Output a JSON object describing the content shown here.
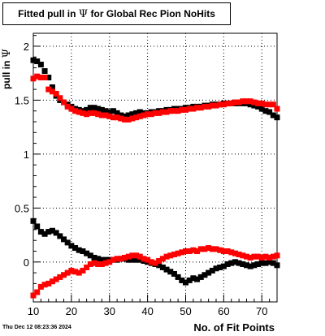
{
  "title": {
    "prefix": "Fitted pull in ",
    "symbol": "Ψ",
    "suffix": "for Global Rec Pion NoHits"
  },
  "timestamp": "Thu Dec 12 08:23:36 2024",
  "colors": {
    "series_black": "#000000",
    "series_red": "#ff0000",
    "grid": "#000000"
  },
  "chart_data": {
    "type": "scatter",
    "title": "Fitted pull in Ψ for Global Rec Pion NoHits",
    "xlabel": "No. of Fit Points",
    "ylabel_prefix": "pull in ",
    "ylabel_symbol": "Ψ",
    "xlim": [
      10,
      74
    ],
    "ylim": [
      -0.37,
      2.12
    ],
    "xticks": [
      10,
      20,
      30,
      40,
      50,
      60,
      70
    ],
    "yticks": [
      0,
      0.5,
      1,
      1.5,
      2
    ],
    "ytick_labels": [
      "0",
      "0.5",
      "1",
      "1.5",
      "2"
    ],
    "grid": true,
    "legend": "none",
    "series": [
      {
        "x": [
          10,
          11,
          12,
          13,
          14,
          15,
          16,
          17,
          18,
          19,
          20,
          21,
          22,
          23,
          24,
          25,
          26,
          27,
          28,
          29,
          30,
          31,
          32,
          33,
          34,
          35,
          36,
          37,
          38,
          39,
          40,
          41,
          42,
          43,
          44,
          45,
          46,
          47,
          48,
          49,
          50,
          51,
          52,
          53,
          54,
          55,
          56,
          57,
          58,
          59,
          60,
          61,
          62,
          63,
          64,
          65,
          66,
          67,
          68,
          69,
          70,
          71,
          72,
          73,
          74
        ],
        "y": [
          1.87,
          1.86,
          1.83,
          1.77,
          1.71,
          1.62,
          1.54,
          1.5,
          1.48,
          1.46,
          1.44,
          1.42,
          1.41,
          1.4,
          1.41,
          1.43,
          1.43,
          1.42,
          1.41,
          1.4,
          1.39,
          1.4,
          1.38,
          1.36,
          1.35,
          1.36,
          1.37,
          1.38,
          1.39,
          1.38,
          1.38,
          1.39,
          1.39,
          1.4,
          1.4,
          1.41,
          1.41,
          1.42,
          1.42,
          1.42,
          1.43,
          1.43,
          1.44,
          1.44,
          1.44,
          1.45,
          1.45,
          1.46,
          1.46,
          1.46,
          1.47,
          1.47,
          1.47,
          1.47,
          1.47,
          1.47,
          1.47,
          1.46,
          1.45,
          1.44,
          1.42,
          1.4,
          1.39,
          1.36,
          1.34
        ]
      },
      {
        "x": [
          10,
          11,
          12,
          13,
          14,
          15,
          16,
          17,
          18,
          19,
          20,
          21,
          22,
          23,
          24,
          25,
          26,
          27,
          28,
          29,
          30,
          31,
          32,
          33,
          34,
          35,
          36,
          37,
          38,
          39,
          40,
          41,
          42,
          43,
          44,
          45,
          46,
          47,
          48,
          49,
          50,
          51,
          52,
          53,
          54,
          55,
          56,
          57,
          58,
          59,
          60,
          61,
          62,
          63,
          64,
          65,
          66,
          67,
          68,
          69,
          70,
          71,
          72,
          73,
          74
        ],
        "y": [
          1.7,
          1.72,
          1.71,
          1.71,
          1.6,
          1.58,
          1.56,
          1.52,
          1.48,
          1.44,
          1.42,
          1.4,
          1.39,
          1.38,
          1.37,
          1.38,
          1.38,
          1.37,
          1.36,
          1.36,
          1.35,
          1.34,
          1.34,
          1.33,
          1.32,
          1.32,
          1.33,
          1.34,
          1.35,
          1.36,
          1.37,
          1.37,
          1.38,
          1.38,
          1.39,
          1.39,
          1.4,
          1.4,
          1.4,
          1.41,
          1.41,
          1.42,
          1.42,
          1.43,
          1.43,
          1.44,
          1.44,
          1.45,
          1.45,
          1.46,
          1.46,
          1.47,
          1.47,
          1.48,
          1.48,
          1.49,
          1.49,
          1.49,
          1.48,
          1.47,
          1.47,
          1.46,
          1.46,
          1.46,
          1.42
        ]
      },
      {
        "x": [
          10,
          11,
          12,
          13,
          14,
          15,
          16,
          17,
          18,
          19,
          20,
          21,
          22,
          23,
          24,
          25,
          26,
          27,
          28,
          29,
          30,
          31,
          32,
          33,
          34,
          35,
          36,
          37,
          38,
          39,
          40,
          41,
          42,
          43,
          44,
          45,
          46,
          47,
          48,
          49,
          50,
          51,
          52,
          53,
          54,
          55,
          56,
          57,
          58,
          59,
          60,
          61,
          62,
          63,
          64,
          65,
          66,
          67,
          68,
          69,
          70,
          71,
          72,
          73,
          74
        ],
        "y": [
          0.38,
          0.33,
          0.28,
          0.26,
          0.28,
          0.29,
          0.27,
          0.24,
          0.21,
          0.18,
          0.15,
          0.13,
          0.11,
          0.1,
          0.08,
          0.06,
          0.04,
          0.03,
          0.02,
          0.02,
          0.02,
          0.02,
          0.02,
          0.03,
          0.03,
          0.02,
          0.02,
          0.02,
          0.02,
          0.01,
          0.0,
          -0.01,
          -0.02,
          -0.03,
          -0.05,
          -0.07,
          -0.09,
          -0.11,
          -0.14,
          -0.17,
          -0.19,
          -0.17,
          -0.15,
          -0.16,
          -0.14,
          -0.12,
          -0.1,
          -0.08,
          -0.06,
          -0.05,
          -0.04,
          -0.02,
          -0.01,
          0.0,
          -0.01,
          -0.02,
          -0.03,
          -0.04,
          -0.03,
          -0.02,
          -0.01,
          -0.01,
          0.0,
          -0.01,
          -0.03
        ]
      },
      {
        "x": [
          10,
          11,
          12,
          13,
          14,
          15,
          16,
          17,
          18,
          19,
          20,
          21,
          22,
          23,
          24,
          25,
          26,
          27,
          28,
          29,
          30,
          31,
          32,
          33,
          34,
          35,
          36,
          37,
          38,
          39,
          40,
          41,
          42,
          43,
          44,
          45,
          46,
          47,
          48,
          49,
          50,
          51,
          52,
          53,
          54,
          55,
          56,
          57,
          58,
          59,
          60,
          61,
          62,
          63,
          64,
          65,
          66,
          67,
          68,
          69,
          70,
          71,
          72,
          73,
          74
        ],
        "y": [
          -0.31,
          -0.28,
          -0.23,
          -0.21,
          -0.2,
          -0.18,
          -0.16,
          -0.14,
          -0.12,
          -0.1,
          -0.08,
          -0.09,
          -0.1,
          -0.08,
          -0.05,
          -0.02,
          -0.01,
          -0.02,
          -0.02,
          -0.01,
          0.0,
          0.02,
          0.03,
          0.03,
          0.04,
          0.05,
          0.06,
          0.06,
          0.05,
          0.03,
          0.02,
          0.0,
          -0.01,
          0.01,
          0.03,
          0.05,
          0.06,
          0.07,
          0.08,
          0.09,
          0.1,
          0.1,
          0.11,
          0.1,
          0.12,
          0.12,
          0.13,
          0.12,
          0.12,
          0.11,
          0.1,
          0.1,
          0.09,
          0.08,
          0.07,
          0.06,
          0.05,
          0.04,
          0.05,
          0.05,
          0.04,
          0.05,
          0.04,
          0.05,
          0.06
        ]
      }
    ]
  }
}
